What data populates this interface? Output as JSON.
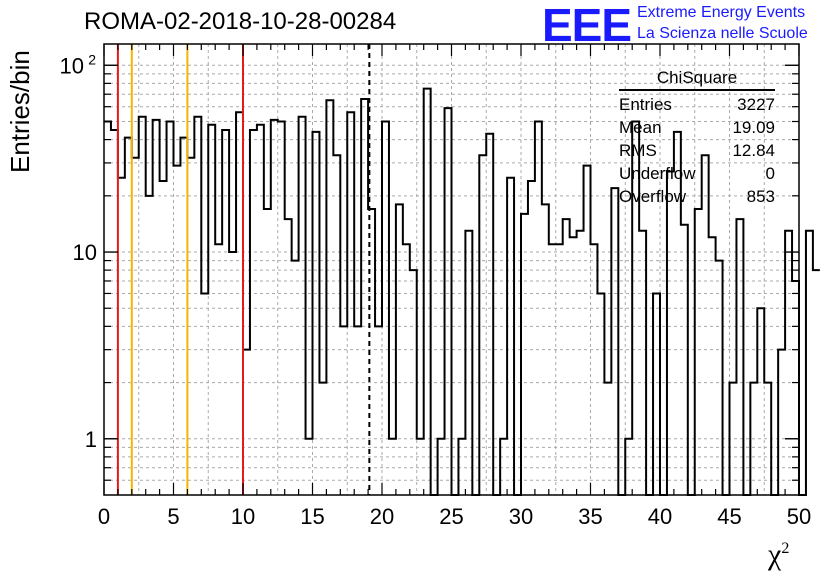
{
  "title": "ROMA-02-2018-10-28-00284",
  "logo": {
    "text": "EEE",
    "line1": "Extreme Energy Events",
    "line2": "La Scienza nelle Scuole",
    "color": "#1a1aff"
  },
  "stats": {
    "name": "ChiSquare",
    "rows": [
      {
        "label": "Entries",
        "value": "3227"
      },
      {
        "label": "Mean",
        "value": "19.09"
      },
      {
        "label": "RMS",
        "value": "12.84"
      },
      {
        "label": "Underflow",
        "value": "0"
      },
      {
        "label": "Overflow",
        "value": "853"
      }
    ]
  },
  "chart_data": {
    "type": "histogram",
    "ylabel": "Entries/bin",
    "xlabel": "χ",
    "xlabel_sup": "2",
    "xlim": [
      0,
      50
    ],
    "ylim": [
      0.5,
      130
    ],
    "yscale": "log",
    "grid": true,
    "bin_width": 0.5,
    "x_ticks": [
      "0",
      "5",
      "10",
      "15",
      "20",
      "25",
      "30",
      "35",
      "40",
      "45",
      "50"
    ],
    "y_ticks": [
      {
        "v": 1,
        "label": "1"
      },
      {
        "v": 10,
        "label": "10"
      },
      {
        "v": 100,
        "label": "10",
        "sup": "2"
      }
    ],
    "values": [
      50,
      45,
      25,
      41,
      32,
      53,
      20,
      51,
      24,
      50,
      29,
      41,
      32,
      53,
      6,
      48,
      11,
      45,
      10,
      56,
      3,
      45,
      48,
      17,
      51,
      50,
      15,
      9,
      53,
      1,
      44,
      2,
      65,
      33,
      4,
      56,
      4,
      66,
      17,
      4,
      50,
      1,
      18,
      11,
      8,
      1,
      75,
      0.5,
      1,
      59,
      0.5,
      1,
      13,
      0.5,
      33,
      43,
      0.5,
      1,
      25,
      0.5,
      16,
      24,
      50,
      18,
      11,
      11,
      15,
      12,
      13,
      29,
      11,
      6,
      2,
      22,
      0.5,
      1,
      50,
      13,
      0.5,
      6,
      0.5,
      27,
      44,
      14,
      0.5,
      17,
      33,
      12,
      9,
      0.5,
      2,
      15,
      0.5,
      2,
      5,
      2,
      0.5,
      3,
      13,
      7,
      0.5,
      13,
      8
    ],
    "vlines": [
      {
        "x": 1,
        "color": "#e8191c",
        "style": "solid"
      },
      {
        "x": 2,
        "color": "#f5b400",
        "style": "solid"
      },
      {
        "x": 6,
        "color": "#f5b400",
        "style": "solid"
      },
      {
        "x": 10,
        "color": "#e8191c",
        "style": "solid"
      },
      {
        "x": 19.09,
        "color": "#000000",
        "style": "dashed"
      }
    ]
  }
}
